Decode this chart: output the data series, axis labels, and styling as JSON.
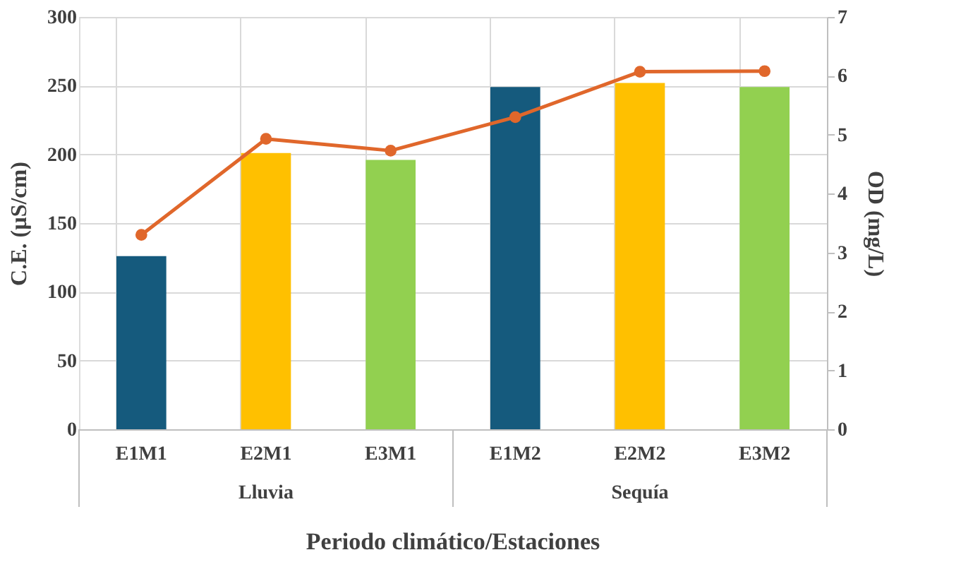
{
  "chart_data": {
    "type": "bar",
    "xlabel": "Periodo climático/Estaciones",
    "ylabel": "C.E. (µS/cm)",
    "y2label": "OD (mg/L)",
    "categories": [
      "E1M1",
      "E2M1",
      "E3M1",
      "E1M2",
      "E2M2",
      "E3M2"
    ],
    "series": [
      {
        "colors": [
          "#155a7d",
          "#ffc000",
          "#92d050",
          "#155a7d",
          "#ffc000",
          "#92d050"
        ],
        "values": [
          126,
          201,
          196,
          249,
          252,
          249
        ]
      },
      {
        "type": "line",
        "axis": "y2",
        "color": "#e0672b",
        "marker": "circle",
        "values": [
          3.3,
          4.93,
          4.73,
          5.3,
          6.07,
          6.08
        ]
      }
    ],
    "ylim": [
      0,
      300
    ],
    "yticks": [
      0,
      50,
      100,
      150,
      200,
      250,
      300
    ],
    "y2lim": [
      0,
      7
    ],
    "y2ticks": [
      0,
      1,
      2,
      3,
      4,
      5,
      6,
      7
    ],
    "annotations": [
      "Lluvia",
      "Sequía"
    ],
    "grid": true
  }
}
